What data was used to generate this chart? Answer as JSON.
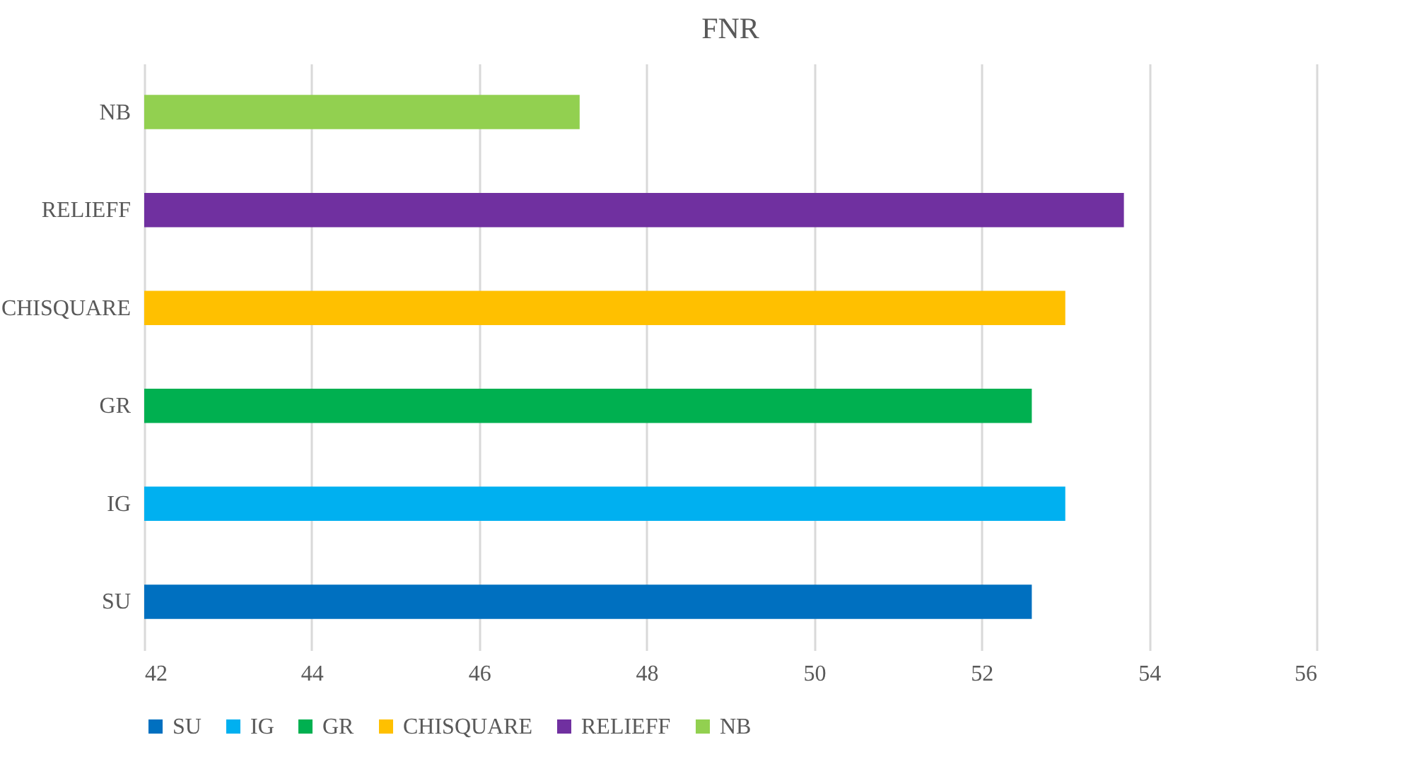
{
  "chart_data": {
    "type": "bar",
    "orientation": "horizontal",
    "title": "FNR",
    "categories": [
      "NB",
      "RELIEFF",
      "CHISQUARE",
      "GR",
      "IG",
      "SU"
    ],
    "series": [
      {
        "name": "SU",
        "color": "#0070c0",
        "values": [
          null,
          null,
          null,
          null,
          null,
          52.6
        ]
      },
      {
        "name": "IG",
        "color": "#00b0f0",
        "values": [
          null,
          null,
          null,
          null,
          53.0,
          null
        ]
      },
      {
        "name": "GR",
        "color": "#00b050",
        "values": [
          null,
          null,
          null,
          52.6,
          null,
          null
        ]
      },
      {
        "name": "CHISQUARE",
        "color": "#ffc000",
        "values": [
          null,
          null,
          53.0,
          null,
          null,
          null
        ]
      },
      {
        "name": "RELIEFF",
        "color": "#7030a0",
        "values": [
          null,
          53.7,
          null,
          null,
          null,
          null
        ]
      },
      {
        "name": "NB",
        "color": "#92d050",
        "values": [
          47.2,
          null,
          null,
          null,
          null,
          null
        ]
      }
    ],
    "xlim": [
      42,
      56
    ],
    "xticks": [
      42,
      44,
      46,
      48,
      50,
      52,
      54,
      56
    ],
    "grid": "x",
    "legend": "bottom"
  }
}
